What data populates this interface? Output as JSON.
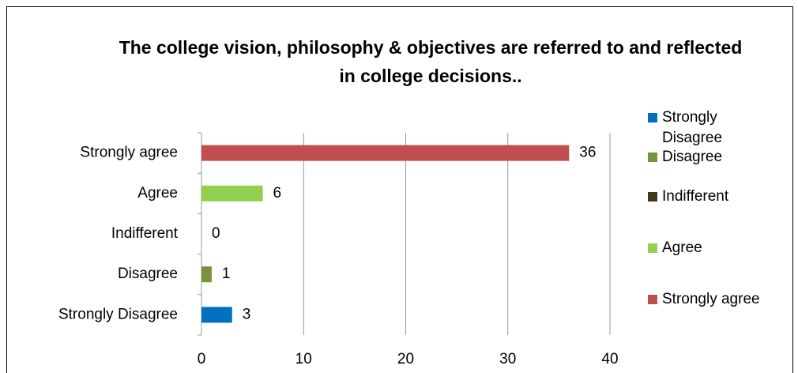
{
  "chart_data": {
    "type": "bar",
    "orientation": "horizontal",
    "title": "The college vision, philosophy & objectives are referred to and reflected in college decisions..",
    "categories": [
      "Strongly Disagree",
      "Disagree",
      "Indifferent",
      "Agree",
      "Strongly agree"
    ],
    "values": [
      3,
      1,
      0,
      6,
      36
    ],
    "colors": [
      "#0070c0",
      "#77933c",
      "#403a1e",
      "#92d050",
      "#c0504d"
    ],
    "xlim": [
      0,
      40
    ],
    "xticks": [
      0,
      10,
      20,
      30,
      40
    ],
    "grid": true,
    "legend": "right"
  }
}
